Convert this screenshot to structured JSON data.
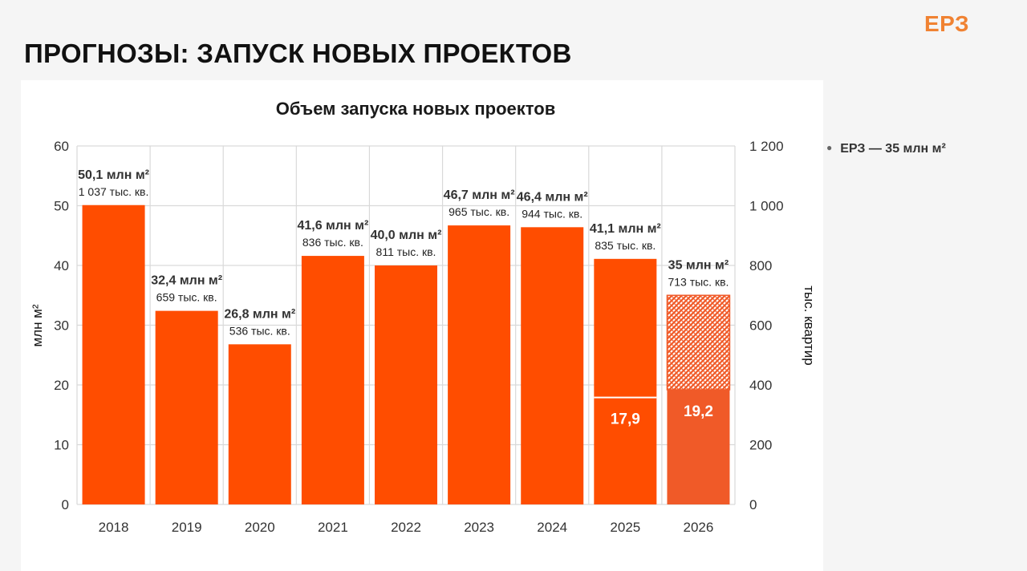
{
  "slide": {
    "title": "ПРОГНОЗЫ: ЗАПУСК НОВЫХ ПРОЕКТОВ",
    "logo": "ЕРЗ",
    "legend_note": "ЕРЗ — 35 млн м²"
  },
  "colors": {
    "bar": "#ff4d00",
    "forecast_bar": "#f05a28",
    "logo": "#f08232"
  },
  "chart_data": {
    "type": "bar",
    "title": "Объем запуска  новых проектов",
    "ylabel": "млн м²",
    "y2label": "тыс. квартир",
    "ylim": [
      0,
      60
    ],
    "y2lim": [
      0,
      1200
    ],
    "yticks": [
      "0",
      "10",
      "20",
      "30",
      "40",
      "50",
      "60"
    ],
    "y2ticks": [
      "0",
      "200",
      "400",
      "600",
      "800",
      "1 000",
      "1 200"
    ],
    "grid": true,
    "categories": [
      "2018",
      "2019",
      "2020",
      "2021",
      "2022",
      "2023",
      "2024",
      "2025",
      "2026"
    ],
    "values": [
      50.1,
      32.4,
      26.8,
      41.6,
      40.0,
      46.7,
      46.4,
      41.1,
      35
    ],
    "value_labels": [
      "50,1 млн м²",
      "32,4 млн м²",
      "26,8 млн м²",
      "41,6 млн м²",
      "40,0 млн м²",
      "46,7 млн м²",
      "46,4 млн м²",
      "41,1 млн м²",
      "35 млн м²"
    ],
    "apartments_labels": [
      "1 037 тыс. кв.",
      "659 тыс. кв.",
      "536 тыс. кв.",
      "836 тыс. кв.",
      "811 тыс. кв.",
      "965 тыс. кв.",
      "944 тыс. кв.",
      "835 тыс. кв.",
      "713 тыс. кв."
    ],
    "partial_segments": [
      {
        "category": "2025",
        "value": 17.9,
        "label": "17,9"
      },
      {
        "category": "2026",
        "value": 19.2,
        "label": "19,2"
      }
    ],
    "forecast_category": "2026"
  }
}
